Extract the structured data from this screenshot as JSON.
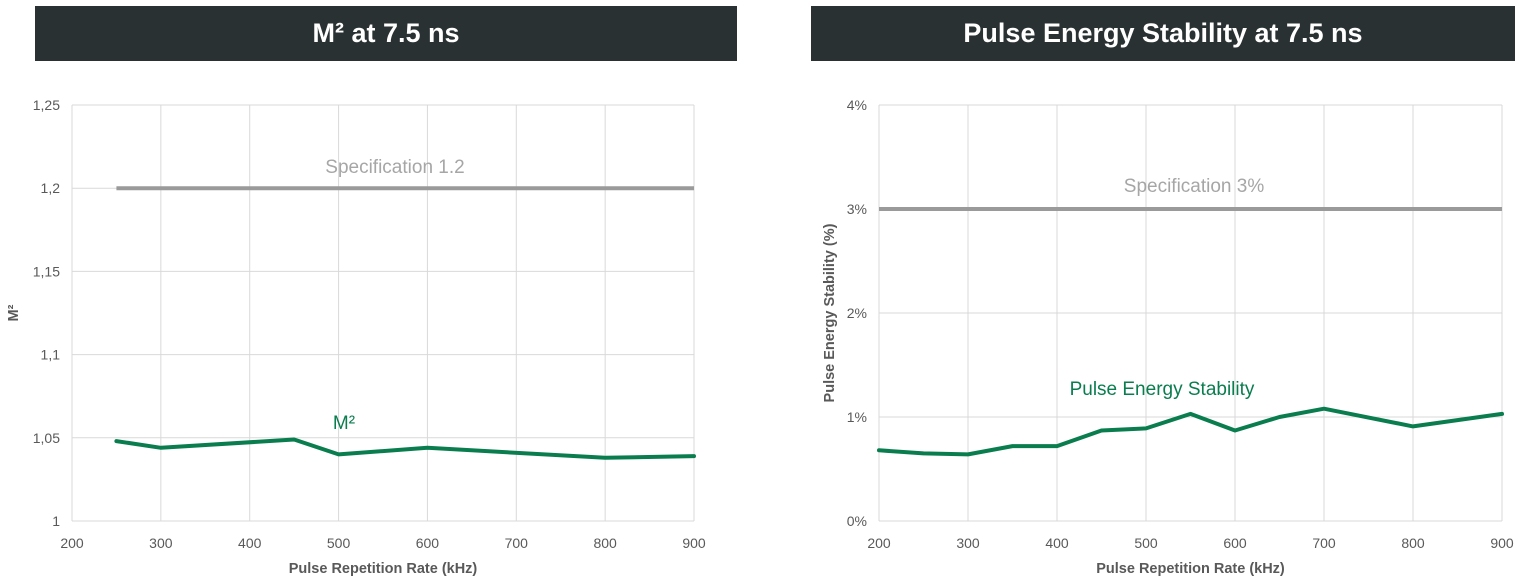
{
  "colors": {
    "series": "#0a7d4f",
    "spec": "#9a9a9a",
    "grid": "#d9d9d9",
    "title_bg": "#2a3133"
  },
  "chart_data": [
    {
      "type": "line",
      "title": "M² at 7.5 ns",
      "xlabel": "Pulse Repetition Rate (kHz)",
      "ylabel": "M²",
      "xlim": [
        200,
        900
      ],
      "ylim": [
        1,
        1.25
      ],
      "xticks": [
        200,
        300,
        400,
        500,
        600,
        700,
        800,
        900
      ],
      "xtick_labels": [
        "200",
        "300",
        "400",
        "500",
        "600",
        "700",
        "800",
        "900"
      ],
      "yticks": [
        1,
        1.05,
        1.1,
        1.15,
        1.2,
        1.25
      ],
      "ytick_labels": [
        "1",
        "1,05",
        "1,1",
        "1,15",
        "1,2",
        "1,25"
      ],
      "grid": true,
      "reference_line": {
        "label": "Specification 1.2",
        "y": 1.2,
        "x": [
          250,
          900
        ]
      },
      "series": [
        {
          "name": "M²",
          "x": [
            250,
            300,
            450,
            500,
            600,
            800,
            900
          ],
          "y": [
            1.048,
            1.044,
            1.049,
            1.04,
            1.044,
            1.038,
            1.039
          ]
        }
      ]
    },
    {
      "type": "line",
      "title": "Pulse Energy Stability at 7.5 ns",
      "xlabel": "Pulse Repetition Rate (kHz)",
      "ylabel": "Pulse Energy Stability (%)",
      "xlim": [
        200,
        900
      ],
      "ylim": [
        0,
        4
      ],
      "xticks": [
        200,
        300,
        400,
        500,
        600,
        700,
        800,
        900
      ],
      "xtick_labels": [
        "200",
        "300",
        "400",
        "500",
        "600",
        "700",
        "800",
        "900"
      ],
      "yticks": [
        0,
        1,
        2,
        3,
        4
      ],
      "ytick_labels": [
        "0%",
        "1%",
        "2%",
        "3%",
        "4%"
      ],
      "grid": true,
      "reference_line": {
        "label": "Specification 3%",
        "y": 3,
        "x": [
          200,
          900
        ]
      },
      "series": [
        {
          "name": "Pulse Energy Stability",
          "x": [
            200,
            250,
            300,
            350,
            400,
            450,
            500,
            550,
            600,
            650,
            700,
            800,
            900
          ],
          "y": [
            0.68,
            0.65,
            0.64,
            0.72,
            0.72,
            0.87,
            0.89,
            1.03,
            0.87,
            1.0,
            1.08,
            0.91,
            1.03
          ]
        }
      ]
    }
  ]
}
